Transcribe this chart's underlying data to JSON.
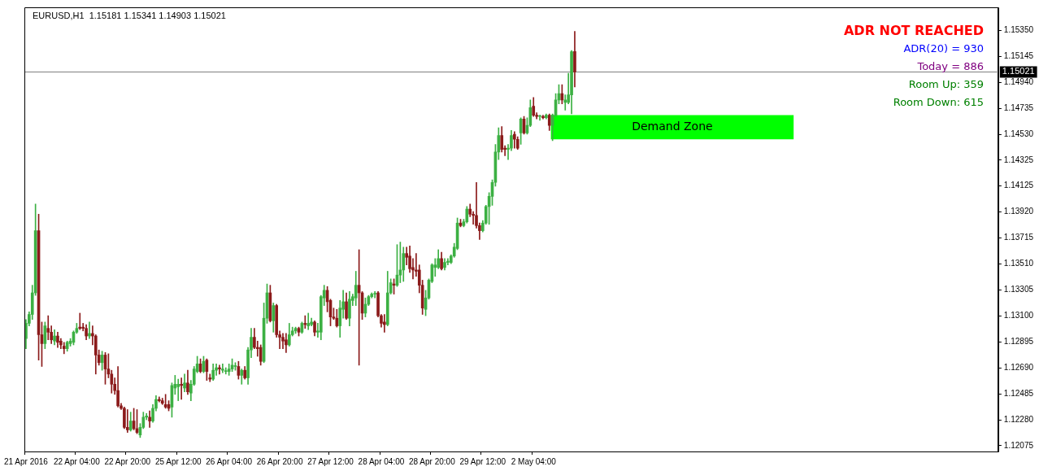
{
  "chart_data": {
    "type": "candlestick",
    "title": "EURUSD,H1  1.15181 1.15341 1.14903 1.15021",
    "annotations": [
      "ADR NOT REACHED",
      "ADR(20) = 930",
      "Today = 886",
      "Room Up: 359",
      "Room Down: 615"
    ],
    "categories": [
      "21 Apr 2016",
      null,
      null,
      null,
      null,
      null,
      null,
      null,
      null,
      null,
      null,
      null,
      null,
      null,
      null,
      null,
      "22 Apr 04:00",
      null,
      null,
      null,
      null,
      null,
      null,
      null,
      null,
      null,
      null,
      null,
      null,
      null,
      null,
      null,
      "22 Apr 20:00",
      null,
      null,
      null,
      null,
      null,
      null,
      null,
      null,
      null,
      null,
      null,
      null,
      null,
      null,
      null,
      "25 Apr 12:00",
      null,
      null,
      null,
      null,
      null,
      null,
      null,
      null,
      null,
      null,
      null,
      null,
      null,
      null,
      null,
      "26 Apr 04:00",
      null,
      null,
      null,
      null,
      null,
      null,
      null,
      null,
      null,
      null,
      null,
      null,
      null,
      null,
      null,
      "26 Apr 20:00",
      null,
      null,
      null,
      null,
      null,
      null,
      null,
      null,
      null,
      null,
      null,
      null,
      null,
      null,
      null,
      "27 Apr 12:00",
      null,
      null,
      null,
      null,
      null,
      null,
      null,
      null,
      null,
      null,
      null,
      null,
      null,
      null,
      null,
      "28 Apr 04:00",
      null,
      null,
      null,
      null,
      null,
      null,
      null,
      null,
      null,
      null,
      null,
      null,
      null,
      null,
      null,
      "28 Apr 20:00",
      null,
      null,
      null,
      null,
      null,
      null,
      null,
      null,
      null,
      null,
      null,
      null,
      null,
      null,
      null,
      "29 Apr 12:00",
      null,
      null,
      null,
      null,
      null,
      null,
      null,
      null,
      null,
      null,
      null,
      null,
      null,
      null,
      null,
      "2 May 04:00",
      null,
      null,
      null,
      null,
      null,
      null,
      null,
      null,
      null,
      null,
      null,
      null,
      null,
      null,
      null,
      null,
      null,
      null,
      null,
      null,
      null,
      null,
      null,
      null,
      null,
      null,
      null,
      null,
      null,
      null,
      null,
      null,
      null,
      null,
      null,
      null,
      null,
      null,
      null,
      null,
      null,
      null,
      null,
      null,
      null,
      null,
      null,
      null,
      null,
      null,
      null,
      null,
      null,
      null,
      null,
      null,
      null,
      null,
      null,
      null,
      null,
      null,
      null,
      null,
      null,
      null,
      null,
      null,
      null,
      null,
      null,
      null,
      null,
      null,
      null,
      null,
      null,
      null,
      null,
      null,
      null,
      null,
      null,
      null,
      null,
      null,
      null,
      null,
      null,
      null,
      null,
      null,
      null,
      null,
      null,
      null,
      null,
      null,
      null,
      null,
      null,
      null,
      null,
      null,
      null,
      null,
      null,
      null,
      null,
      null,
      null,
      null,
      null,
      null,
      null,
      null,
      null,
      null,
      null,
      null,
      null,
      null,
      null,
      null,
      null,
      null,
      null,
      null,
      null,
      null,
      null,
      null,
      null,
      null,
      null,
      null,
      null,
      null,
      null,
      null,
      null,
      null,
      null,
      null,
      null,
      null
    ],
    "ohlc": [
      [
        1.1292,
        1.1307,
        1.1284,
        1.1304
      ],
      [
        1.1304,
        1.1313,
        1.1302,
        1.1311
      ],
      [
        1.1311,
        1.1334,
        1.1307,
        1.1328
      ],
      [
        1.1328,
        1.1398,
        1.1326,
        1.1377
      ],
      [
        1.1377,
        1.139,
        1.1275,
        1.1295
      ],
      [
        1.1295,
        1.1305,
        1.127,
        1.1288
      ],
      [
        1.1288,
        1.1305,
        1.1284,
        1.1302
      ],
      [
        1.13,
        1.131,
        1.1291,
        1.1297
      ],
      [
        1.1297,
        1.1302,
        1.1288,
        1.1291
      ],
      [
        1.129,
        1.1299,
        1.1287,
        1.1294
      ],
      [
        1.1294,
        1.1297,
        1.1285,
        1.1289
      ],
      [
        1.129,
        1.1292,
        1.1284,
        1.1287
      ],
      [
        1.1286,
        1.1289,
        1.128,
        1.1284
      ],
      [
        1.1284,
        1.129,
        1.1282,
        1.1289
      ],
      [
        1.1288,
        1.1292,
        1.1286,
        1.129
      ],
      [
        1.1289,
        1.1298,
        1.1287,
        1.1297
      ],
      [
        1.1297,
        1.1304,
        1.1296,
        1.13
      ],
      [
        1.1301,
        1.1312,
        1.1299,
        1.13
      ],
      [
        1.1301,
        1.1304,
        1.1298,
        1.13
      ],
      [
        1.13,
        1.1303,
        1.1291,
        1.1294
      ],
      [
        1.1294,
        1.1305,
        1.1292,
        1.1296
      ],
      [
        1.1296,
        1.1302,
        1.1287,
        1.1294
      ],
      [
        1.1294,
        1.1295,
        1.1264,
        1.1279
      ],
      [
        1.1279,
        1.1283,
        1.1271,
        1.1273
      ],
      [
        1.1273,
        1.1282,
        1.1267,
        1.1279
      ],
      [
        1.1279,
        1.1281,
        1.1256,
        1.1268
      ],
      [
        1.1268,
        1.128,
        1.1261,
        1.1264
      ],
      [
        1.1264,
        1.1267,
        1.1249,
        1.1256
      ],
      [
        1.1256,
        1.1261,
        1.1248,
        1.1251
      ],
      [
        1.1251,
        1.127,
        1.1238,
        1.1239
      ],
      [
        1.1239,
        1.1241,
        1.1236,
        1.1237
      ],
      [
        1.1237,
        1.1238,
        1.1221,
        1.1222
      ],
      [
        1.1222,
        1.1236,
        1.1218,
        1.122
      ],
      [
        1.122,
        1.1234,
        1.1219,
        1.1227
      ],
      [
        1.1227,
        1.1237,
        1.122,
        1.1221
      ],
      [
        1.1221,
        1.1236,
        1.1217,
        1.1218
      ],
      [
        1.1216,
        1.1225,
        1.1214,
        1.1222
      ],
      [
        1.1222,
        1.1234,
        1.1221,
        1.123
      ],
      [
        1.123,
        1.1233,
        1.1228,
        1.1231
      ],
      [
        1.123,
        1.1235,
        1.1222,
        1.1227
      ],
      [
        1.1227,
        1.124,
        1.1226,
        1.1237
      ],
      [
        1.1237,
        1.1247,
        1.1235,
        1.1244
      ],
      [
        1.1244,
        1.1246,
        1.1242,
        1.1243
      ],
      [
        1.1243,
        1.1245,
        1.124,
        1.1241
      ],
      [
        1.124,
        1.1248,
        1.1237,
        1.1238
      ],
      [
        1.124,
        1.1243,
        1.1235,
        1.1237
      ],
      [
        1.1238,
        1.1257,
        1.123,
        1.1255
      ],
      [
        1.1253,
        1.1263,
        1.1248,
        1.1256
      ],
      [
        1.1254,
        1.126,
        1.1243,
        1.1256
      ],
      [
        1.1256,
        1.1261,
        1.1244,
        1.1255
      ],
      [
        1.1253,
        1.1264,
        1.125,
        1.1257
      ],
      [
        1.1257,
        1.1267,
        1.1248,
        1.125
      ],
      [
        1.1249,
        1.1259,
        1.1243,
        1.1256
      ],
      [
        1.1256,
        1.127,
        1.1255,
        1.1268
      ],
      [
        1.1266,
        1.1278,
        1.1265,
        1.1272
      ],
      [
        1.1272,
        1.1276,
        1.1265,
        1.1266
      ],
      [
        1.1266,
        1.1278,
        1.1265,
        1.1274
      ],
      [
        1.1275,
        1.1276,
        1.1259,
        1.1266
      ],
      [
        1.1261,
        1.1264,
        1.1258,
        1.126
      ],
      [
        1.126,
        1.1272,
        1.1259,
        1.1267
      ],
      [
        1.1267,
        1.1272,
        1.1263,
        1.1269
      ],
      [
        1.1269,
        1.1271,
        1.1264,
        1.1268
      ],
      [
        1.1267,
        1.1272,
        1.1265,
        1.1268
      ],
      [
        1.1266,
        1.1269,
        1.1264,
        1.1266
      ],
      [
        1.1266,
        1.1272,
        1.1263,
        1.1268
      ],
      [
        1.1268,
        1.1276,
        1.1266,
        1.1271
      ],
      [
        1.127,
        1.1273,
        1.1267,
        1.127
      ],
      [
        1.127,
        1.1274,
        1.126,
        1.1263
      ],
      [
        1.1263,
        1.1268,
        1.1256,
        1.1267
      ],
      [
        1.1267,
        1.127,
        1.126,
        1.1261
      ],
      [
        1.1261,
        1.1285,
        1.1256,
        1.1283
      ],
      [
        1.1283,
        1.13,
        1.1277,
        1.1293
      ],
      [
        1.1293,
        1.13,
        1.1284,
        1.1285
      ],
      [
        1.1285,
        1.129,
        1.1278,
        1.1284
      ],
      [
        1.1285,
        1.1287,
        1.1271,
        1.1274
      ],
      [
        1.1274,
        1.132,
        1.1273,
        1.1308
      ],
      [
        1.1308,
        1.1335,
        1.1304,
        1.1328
      ],
      [
        1.1328,
        1.1334,
        1.1305,
        1.1306
      ],
      [
        1.1306,
        1.132,
        1.1297,
        1.1318
      ],
      [
        1.1318,
        1.1319,
        1.1293,
        1.1295
      ],
      [
        1.1295,
        1.1298,
        1.1284,
        1.1293
      ],
      [
        1.1293,
        1.1296,
        1.1284,
        1.129
      ],
      [
        1.1291,
        1.1296,
        1.1281,
        1.1287
      ],
      [
        1.1287,
        1.1304,
        1.1286,
        1.1295
      ],
      [
        1.1295,
        1.1301,
        1.1294,
        1.1298
      ],
      [
        1.1298,
        1.1301,
        1.1296,
        1.13
      ],
      [
        1.13,
        1.1301,
        1.1294,
        1.1297
      ],
      [
        1.1297,
        1.1305,
        1.1296,
        1.1304
      ],
      [
        1.1304,
        1.131,
        1.13,
        1.1303
      ],
      [
        1.1302,
        1.1312,
        1.1299,
        1.1304
      ],
      [
        1.1303,
        1.1308,
        1.1302,
        1.1305
      ],
      [
        1.1305,
        1.1306,
        1.1294,
        1.1297
      ],
      [
        1.1297,
        1.1304,
        1.1293,
        1.1298
      ],
      [
        1.1297,
        1.1326,
        1.1291,
        1.1325
      ],
      [
        1.1324,
        1.1334,
        1.1318,
        1.133
      ],
      [
        1.133,
        1.1333,
        1.1313,
        1.1321
      ],
      [
        1.1322,
        1.1323,
        1.1302,
        1.1309
      ],
      [
        1.1309,
        1.1316,
        1.1307,
        1.1308
      ],
      [
        1.1308,
        1.1315,
        1.1301,
        1.1302
      ],
      [
        1.1302,
        1.1322,
        1.1293,
        1.1316
      ],
      [
        1.1315,
        1.133,
        1.1308,
        1.1321
      ],
      [
        1.1321,
        1.1328,
        1.1307,
        1.1308
      ],
      [
        1.1308,
        1.1329,
        1.1302,
        1.1323
      ],
      [
        1.1322,
        1.1327,
        1.1318,
        1.1325
      ],
      [
        1.1324,
        1.1345,
        1.1318,
        1.1334
      ],
      [
        1.1334,
        1.1362,
        1.1271,
        1.1328
      ],
      [
        1.1328,
        1.1329,
        1.1307,
        1.1312
      ],
      [
        1.1312,
        1.1324,
        1.1309,
        1.1319
      ],
      [
        1.1319,
        1.1326,
        1.1318,
        1.1325
      ],
      [
        1.1325,
        1.1328,
        1.1324,
        1.1327
      ],
      [
        1.1327,
        1.1329,
        1.1324,
        1.1327
      ],
      [
        1.1328,
        1.1329,
        1.1309,
        1.131
      ],
      [
        1.131,
        1.1311,
        1.1301,
        1.1304
      ],
      [
        1.1305,
        1.1311,
        1.1297,
        1.1303
      ],
      [
        1.1303,
        1.1345,
        1.1302,
        1.1328
      ],
      [
        1.1328,
        1.1339,
        1.1327,
        1.1336
      ],
      [
        1.1335,
        1.1339,
        1.1327,
        1.1334
      ],
      [
        1.1334,
        1.1366,
        1.1333,
        1.1342
      ],
      [
        1.1342,
        1.1368,
        1.1336,
        1.1346
      ],
      [
        1.1346,
        1.1364,
        1.1337,
        1.1359
      ],
      [
        1.1359,
        1.1364,
        1.135,
        1.1356
      ],
      [
        1.1357,
        1.1365,
        1.1344,
        1.1347
      ],
      [
        1.1348,
        1.1355,
        1.1339,
        1.1346
      ],
      [
        1.1346,
        1.1359,
        1.1341,
        1.1345
      ],
      [
        1.1346,
        1.135,
        1.1328,
        1.1334
      ],
      [
        1.1334,
        1.1338,
        1.1311,
        1.1316
      ],
      [
        1.1315,
        1.133,
        1.131,
        1.1324
      ],
      [
        1.1324,
        1.1339,
        1.1323,
        1.1338
      ],
      [
        1.1337,
        1.1351,
        1.1336,
        1.135
      ],
      [
        1.1348,
        1.1355,
        1.1341,
        1.135
      ],
      [
        1.1348,
        1.1362,
        1.1347,
        1.1355
      ],
      [
        1.1355,
        1.136,
        1.1346,
        1.1347
      ],
      [
        1.1348,
        1.1355,
        1.1346,
        1.1352
      ],
      [
        1.1352,
        1.1355,
        1.135,
        1.1353
      ],
      [
        1.1352,
        1.1358,
        1.1351,
        1.1357
      ],
      [
        1.1357,
        1.1367,
        1.1356,
        1.1364
      ],
      [
        1.1363,
        1.1387,
        1.1362,
        1.1383
      ],
      [
        1.1383,
        1.1386,
        1.138,
        1.1381
      ],
      [
        1.1381,
        1.1386,
        1.138,
        1.1384
      ],
      [
        1.1384,
        1.1396,
        1.1383,
        1.1394
      ],
      [
        1.1394,
        1.1398,
        1.1388,
        1.139
      ],
      [
        1.139,
        1.1392,
        1.1382,
        1.1389
      ],
      [
        1.1389,
        1.1415,
        1.1379,
        1.1381
      ],
      [
        1.1381,
        1.1383,
        1.137,
        1.1377
      ],
      [
        1.1377,
        1.1385,
        1.1376,
        1.1383
      ],
      [
        1.1383,
        1.1397,
        1.1382,
        1.1396
      ],
      [
        1.1396,
        1.1407,
        1.1382,
        1.1404
      ],
      [
        1.1404,
        1.1417,
        1.1397,
        1.1415
      ],
      [
        1.1415,
        1.1445,
        1.1412,
        1.1439
      ],
      [
        1.1439,
        1.1458,
        1.1433,
        1.1452
      ],
      [
        1.1452,
        1.1459,
        1.1439,
        1.1441
      ],
      [
        1.1442,
        1.1444,
        1.1436,
        1.1441
      ],
      [
        1.1441,
        1.1445,
        1.1433,
        1.1442
      ],
      [
        1.1442,
        1.1456,
        1.144,
        1.1452
      ],
      [
        1.1453,
        1.1455,
        1.1442,
        1.1449
      ],
      [
        1.1449,
        1.1451,
        1.1441,
        1.1442
      ],
      [
        1.1454,
        1.1466,
        1.1445,
        1.1465
      ],
      [
        1.1465,
        1.1467,
        1.1453,
        1.1454
      ],
      [
        1.1454,
        1.1466,
        1.1453,
        1.146
      ],
      [
        1.146,
        1.148,
        1.1459,
        1.1474
      ],
      [
        1.1475,
        1.1482,
        1.1467,
        1.1468
      ],
      [
        1.1468,
        1.147,
        1.1465,
        1.1467
      ],
      [
        1.1467,
        1.1468,
        1.1464,
        1.1467
      ],
      [
        1.1467,
        1.1468,
        1.1465,
        1.1466
      ],
      [
        1.1466,
        1.1469,
        1.1465,
        1.1468
      ],
      [
        1.1468,
        1.1469,
        1.1456,
        1.146
      ],
      [
        1.146,
        1.1469,
        1.1448,
        1.1468
      ],
      [
        1.1468,
        1.1485,
        1.1467,
        1.148
      ],
      [
        1.148,
        1.1492,
        1.1477,
        1.1485
      ],
      [
        1.1485,
        1.1492,
        1.1477,
        1.148
      ],
      [
        1.1478,
        1.1484,
        1.1472,
        1.148
      ],
      [
        1.1478,
        1.1501,
        1.1477,
        1.1484
      ],
      [
        1.1484,
        1.1519,
        1.1469,
        1.1518
      ],
      [
        1.15181,
        1.15341,
        1.14903,
        1.15021
      ],
      null,
      null,
      null,
      null,
      null,
      null,
      null,
      null,
      null,
      null,
      null,
      null,
      null,
      null,
      null,
      null,
      null,
      null,
      null,
      null,
      null,
      null,
      null,
      null,
      null,
      null,
      null,
      null,
      null,
      null,
      null,
      null,
      null,
      null,
      null,
      null,
      null,
      null,
      null,
      null,
      null,
      null,
      null,
      null,
      null,
      null,
      null,
      null,
      null,
      null,
      null,
      null,
      null,
      null,
      null,
      null,
      null,
      null,
      null,
      null,
      null,
      null,
      null,
      null,
      null,
      null,
      null,
      null,
      null,
      null,
      null,
      null,
      null,
      null,
      null,
      null,
      null,
      null,
      null,
      null,
      null,
      null,
      null,
      null,
      null,
      null,
      null,
      null,
      null,
      null,
      null,
      null,
      null,
      null,
      null,
      null,
      null,
      null,
      null,
      null,
      null,
      null,
      null,
      null,
      null,
      null,
      null,
      null,
      null,
      null,
      null,
      null,
      null,
      null,
      null,
      null,
      null,
      null,
      null,
      null,
      null,
      null,
      null,
      null,
      null,
      null,
      null,
      null,
      null,
      null,
      null,
      null,
      null
    ],
    "ylim": [
      1.1203,
      1.1553
    ],
    "yticks": [
      {
        "value": 1.1535,
        "label": "1.15350"
      },
      1.15145,
      {
        "value": 1.1494,
        "label": "1.14940"
      },
      1.14735,
      {
        "value": 1.1453,
        "label": "1.14530"
      },
      1.14325,
      1.14125,
      {
        "value": 1.1392,
        "label": "1.13920"
      },
      1.13715,
      {
        "value": 1.1351,
        "label": "1.13510"
      },
      1.13305,
      {
        "value": 1.131,
        "label": "1.13100"
      },
      1.12895,
      {
        "value": 1.1269,
        "label": "1.12690"
      },
      1.12485,
      {
        "value": 1.1228,
        "label": "1.12280"
      },
      1.12075
    ],
    "ref_lines": [
      {
        "axis": "y",
        "value": 1.15021,
        "label": "1.15021",
        "color": "#808080"
      }
    ],
    "bands": [
      {
        "axis": "y",
        "from": 1.1449,
        "to": 1.1468,
        "label": "Demand Zone",
        "color": "#00ff00"
      }
    ],
    "grid": false,
    "legend": false
  }
}
